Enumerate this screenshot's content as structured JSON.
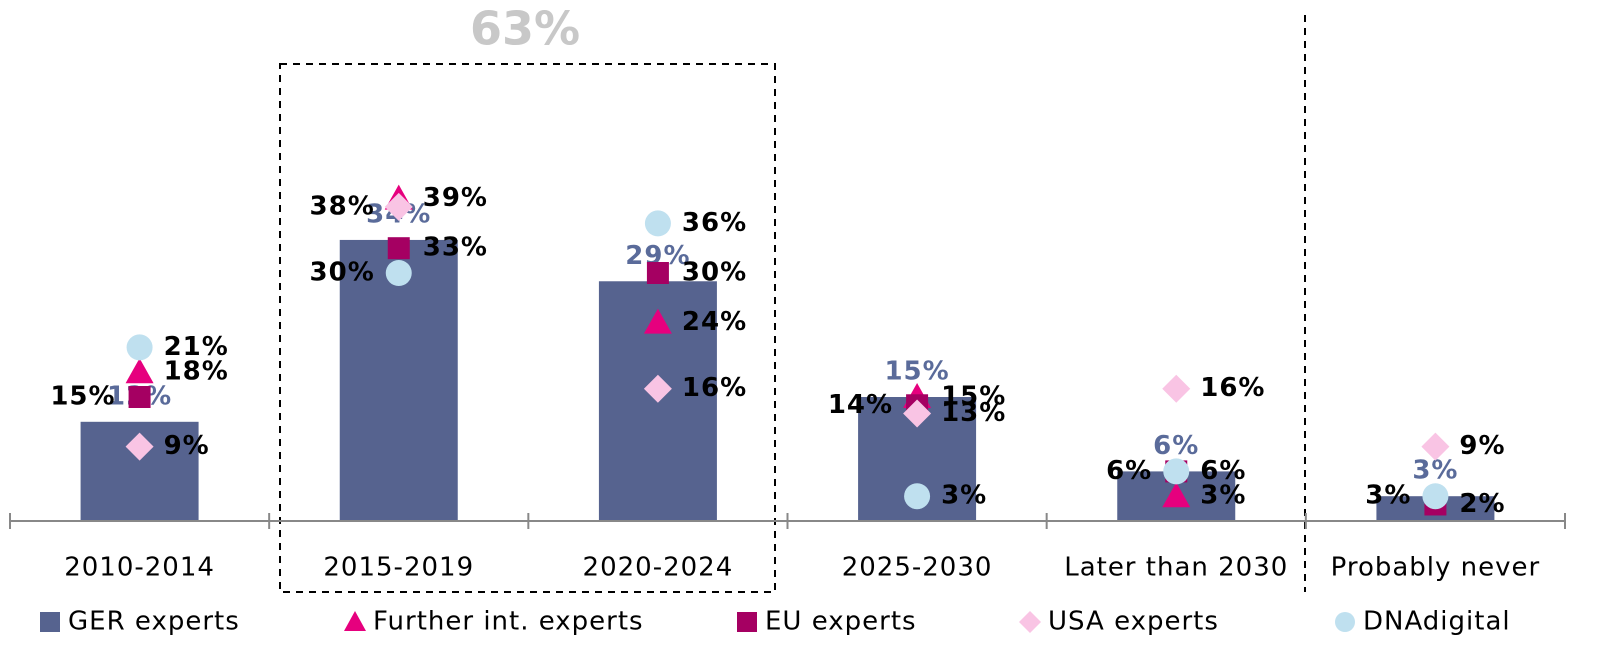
{
  "chart_data": {
    "type": "bar",
    "annotation": "63%",
    "categories": [
      "2010-2014",
      "2015-2019",
      "2020-2024",
      "2025-2030",
      "Later than 2030",
      "Probably never"
    ],
    "ylim": [
      0,
      60
    ],
    "series": [
      {
        "name": "GER experts",
        "color": "#56638f",
        "marker": "bar",
        "values": [
          12,
          34,
          29,
          15,
          6,
          3
        ],
        "value_labels": [
          "12%",
          "34%",
          "29%",
          "15%",
          "6%",
          "3%"
        ]
      },
      {
        "name": "Further int. experts",
        "color": "#e6007e",
        "marker": "triangle",
        "values": [
          18,
          39,
          24,
          15,
          3,
          null
        ],
        "value_labels": [
          "18%",
          "39%",
          "24%",
          "15%",
          "3%",
          null
        ]
      },
      {
        "name": "EU experts",
        "color": "#a50062",
        "marker": "square",
        "values": [
          15,
          33,
          30,
          14,
          6,
          2
        ],
        "value_labels": [
          "15%",
          "33%",
          "30%",
          "14%",
          "6%",
          "2%"
        ]
      },
      {
        "name": "USA experts",
        "color": "#f9c4e4",
        "marker": "diamond",
        "values": [
          9,
          38,
          16,
          13,
          16,
          9
        ],
        "value_labels": [
          "9%",
          "38%",
          "16%",
          "13%",
          "16%",
          "9%"
        ]
      },
      {
        "name": "DNAdigital",
        "color": "#bfe0ef",
        "marker": "circle",
        "values": [
          21,
          30,
          36,
          3,
          6,
          3
        ],
        "value_labels": [
          "21%",
          "30%",
          "36%",
          "3%",
          "6%",
          "3%"
        ]
      }
    ]
  }
}
